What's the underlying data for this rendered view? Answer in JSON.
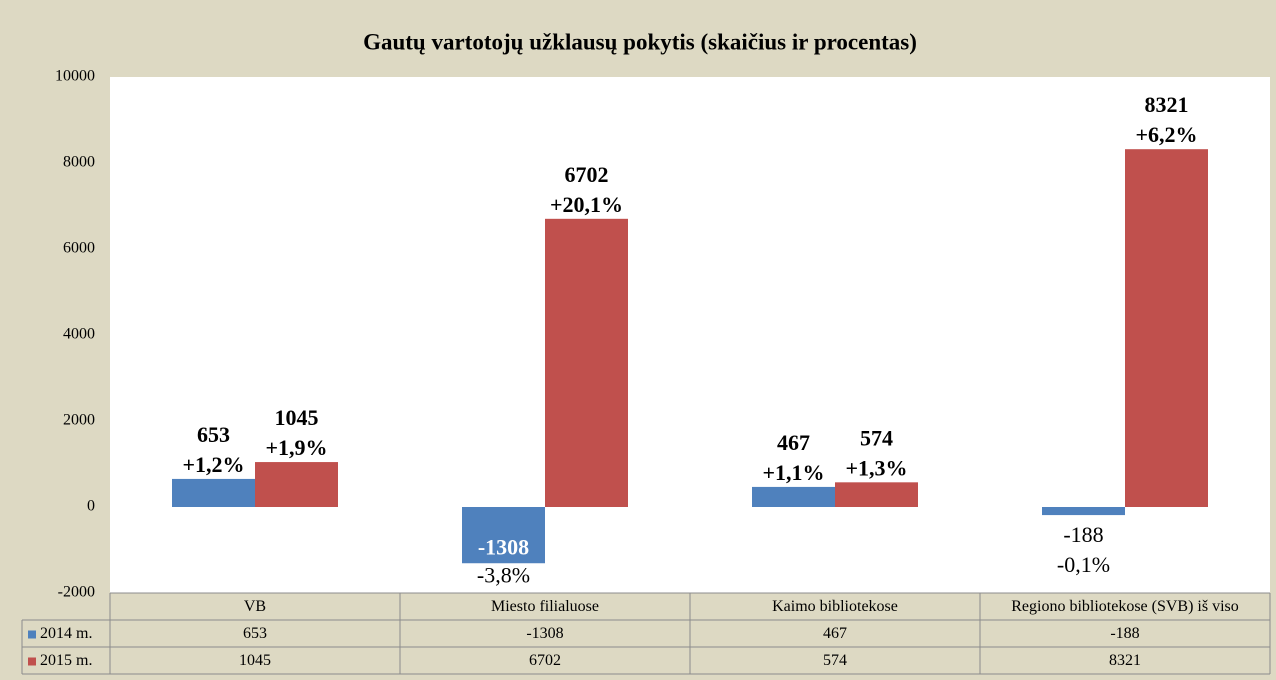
{
  "chart_data": {
    "type": "bar",
    "title": "Gautų  vartotojų užklausų pokytis (skaičius ir procentas)",
    "categories": [
      "VB",
      "Miesto filialuose",
      "Kaimo bibliotekose",
      "Regiono bibliotekose (SVB) iš viso"
    ],
    "series": [
      {
        "name": "2014 m.",
        "color": "#4f81bd",
        "values": [
          653,
          -1308,
          467,
          -188
        ],
        "labels": [
          "+1,2%",
          "-3,8%",
          "+1,1%",
          "-0,1%"
        ]
      },
      {
        "name": "2015 m.",
        "color": "#c0504d",
        "values": [
          1045,
          6702,
          574,
          8321
        ],
        "labels": [
          "+1,9%",
          "+20,1%",
          "+1,3%",
          "+6,2%"
        ]
      }
    ],
    "ylim": [
      -2000,
      10000
    ],
    "yticks": [
      -2000,
      0,
      2000,
      4000,
      6000,
      8000,
      10000
    ],
    "grid": false
  }
}
